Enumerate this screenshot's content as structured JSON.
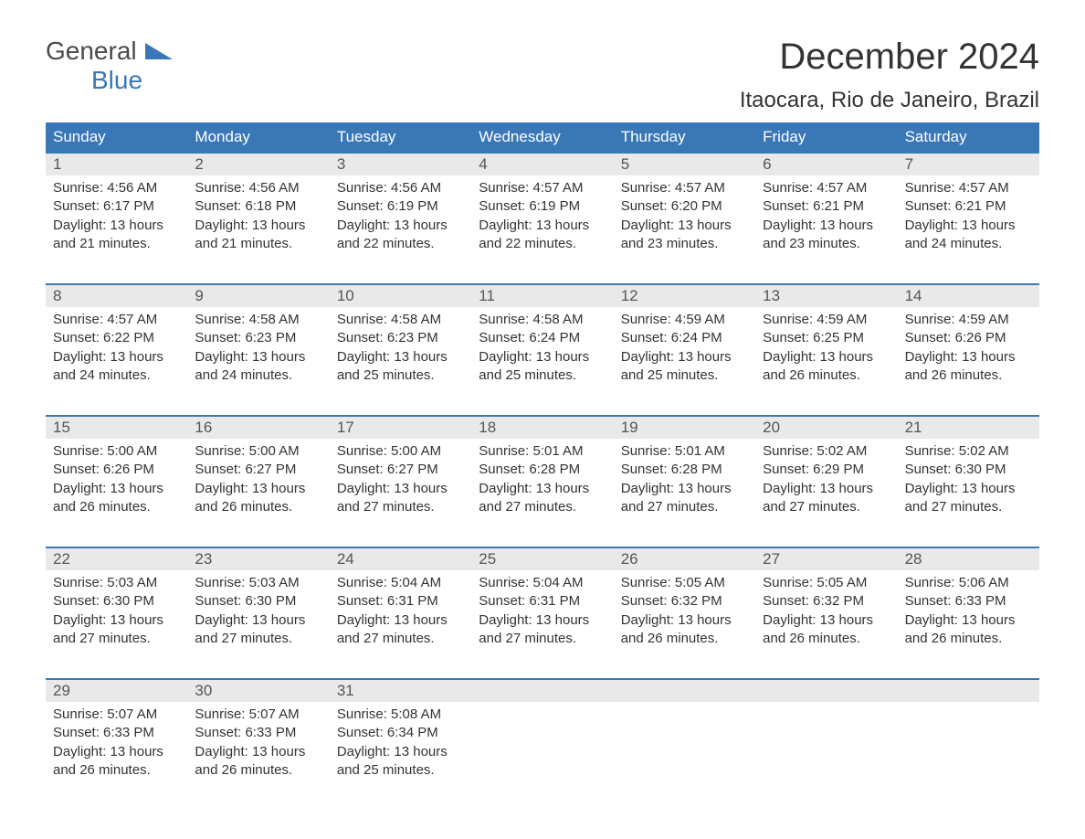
{
  "logo": {
    "text1": "General",
    "text2": "Blue",
    "accent_color": "#3a77b7"
  },
  "title": "December 2024",
  "location": "Itaocara, Rio de Janeiro, Brazil",
  "colors": {
    "header_bg": "#3a77b7",
    "header_text": "#ffffff",
    "daynum_bg": "#e9e9e9",
    "week_border": "#3a77b7",
    "body_text": "#333333",
    "background": "#ffffff"
  },
  "typography": {
    "title_fontsize": 40,
    "location_fontsize": 24,
    "header_fontsize": 17,
    "daynum_fontsize": 17,
    "cell_fontsize": 15
  },
  "day_names": [
    "Sunday",
    "Monday",
    "Tuesday",
    "Wednesday",
    "Thursday",
    "Friday",
    "Saturday"
  ],
  "weeks": [
    [
      {
        "n": "1",
        "sunrise": "4:56 AM",
        "sunset": "6:17 PM",
        "daylight": "13 hours and 21 minutes."
      },
      {
        "n": "2",
        "sunrise": "4:56 AM",
        "sunset": "6:18 PM",
        "daylight": "13 hours and 21 minutes."
      },
      {
        "n": "3",
        "sunrise": "4:56 AM",
        "sunset": "6:19 PM",
        "daylight": "13 hours and 22 minutes."
      },
      {
        "n": "4",
        "sunrise": "4:57 AM",
        "sunset": "6:19 PM",
        "daylight": "13 hours and 22 minutes."
      },
      {
        "n": "5",
        "sunrise": "4:57 AM",
        "sunset": "6:20 PM",
        "daylight": "13 hours and 23 minutes."
      },
      {
        "n": "6",
        "sunrise": "4:57 AM",
        "sunset": "6:21 PM",
        "daylight": "13 hours and 23 minutes."
      },
      {
        "n": "7",
        "sunrise": "4:57 AM",
        "sunset": "6:21 PM",
        "daylight": "13 hours and 24 minutes."
      }
    ],
    [
      {
        "n": "8",
        "sunrise": "4:57 AM",
        "sunset": "6:22 PM",
        "daylight": "13 hours and 24 minutes."
      },
      {
        "n": "9",
        "sunrise": "4:58 AM",
        "sunset": "6:23 PM",
        "daylight": "13 hours and 24 minutes."
      },
      {
        "n": "10",
        "sunrise": "4:58 AM",
        "sunset": "6:23 PM",
        "daylight": "13 hours and 25 minutes."
      },
      {
        "n": "11",
        "sunrise": "4:58 AM",
        "sunset": "6:24 PM",
        "daylight": "13 hours and 25 minutes."
      },
      {
        "n": "12",
        "sunrise": "4:59 AM",
        "sunset": "6:24 PM",
        "daylight": "13 hours and 25 minutes."
      },
      {
        "n": "13",
        "sunrise": "4:59 AM",
        "sunset": "6:25 PM",
        "daylight": "13 hours and 26 minutes."
      },
      {
        "n": "14",
        "sunrise": "4:59 AM",
        "sunset": "6:26 PM",
        "daylight": "13 hours and 26 minutes."
      }
    ],
    [
      {
        "n": "15",
        "sunrise": "5:00 AM",
        "sunset": "6:26 PM",
        "daylight": "13 hours and 26 minutes."
      },
      {
        "n": "16",
        "sunrise": "5:00 AM",
        "sunset": "6:27 PM",
        "daylight": "13 hours and 26 minutes."
      },
      {
        "n": "17",
        "sunrise": "5:00 AM",
        "sunset": "6:27 PM",
        "daylight": "13 hours and 27 minutes."
      },
      {
        "n": "18",
        "sunrise": "5:01 AM",
        "sunset": "6:28 PM",
        "daylight": "13 hours and 27 minutes."
      },
      {
        "n": "19",
        "sunrise": "5:01 AM",
        "sunset": "6:28 PM",
        "daylight": "13 hours and 27 minutes."
      },
      {
        "n": "20",
        "sunrise": "5:02 AM",
        "sunset": "6:29 PM",
        "daylight": "13 hours and 27 minutes."
      },
      {
        "n": "21",
        "sunrise": "5:02 AM",
        "sunset": "6:30 PM",
        "daylight": "13 hours and 27 minutes."
      }
    ],
    [
      {
        "n": "22",
        "sunrise": "5:03 AM",
        "sunset": "6:30 PM",
        "daylight": "13 hours and 27 minutes."
      },
      {
        "n": "23",
        "sunrise": "5:03 AM",
        "sunset": "6:30 PM",
        "daylight": "13 hours and 27 minutes."
      },
      {
        "n": "24",
        "sunrise": "5:04 AM",
        "sunset": "6:31 PM",
        "daylight": "13 hours and 27 minutes."
      },
      {
        "n": "25",
        "sunrise": "5:04 AM",
        "sunset": "6:31 PM",
        "daylight": "13 hours and 27 minutes."
      },
      {
        "n": "26",
        "sunrise": "5:05 AM",
        "sunset": "6:32 PM",
        "daylight": "13 hours and 26 minutes."
      },
      {
        "n": "27",
        "sunrise": "5:05 AM",
        "sunset": "6:32 PM",
        "daylight": "13 hours and 26 minutes."
      },
      {
        "n": "28",
        "sunrise": "5:06 AM",
        "sunset": "6:33 PM",
        "daylight": "13 hours and 26 minutes."
      }
    ],
    [
      {
        "n": "29",
        "sunrise": "5:07 AM",
        "sunset": "6:33 PM",
        "daylight": "13 hours and 26 minutes."
      },
      {
        "n": "30",
        "sunrise": "5:07 AM",
        "sunset": "6:33 PM",
        "daylight": "13 hours and 26 minutes."
      },
      {
        "n": "31",
        "sunrise": "5:08 AM",
        "sunset": "6:34 PM",
        "daylight": "13 hours and 25 minutes."
      },
      null,
      null,
      null,
      null
    ]
  ],
  "labels": {
    "sunrise": "Sunrise: ",
    "sunset": "Sunset: ",
    "daylight": "Daylight: "
  }
}
